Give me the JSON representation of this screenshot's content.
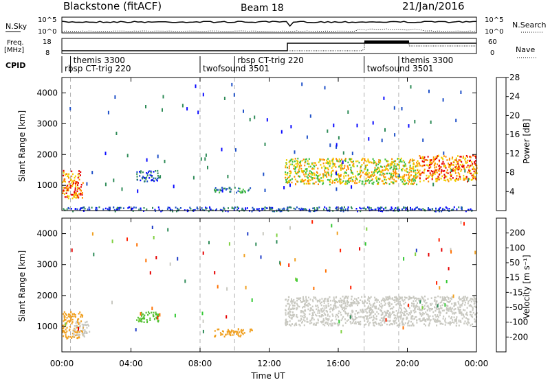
{
  "header": {
    "title": "Blackstone (fitACF)",
    "beam": "Beam 18",
    "date": "21/Jan/2016"
  },
  "panels": {
    "nsky": {
      "label": "N.Sky",
      "tick_top": "10^5",
      "tick_bottom": "10^0"
    },
    "nsearch": {
      "label": "N.Search",
      "tick_top": "10^5",
      "tick_bottom": "10^0"
    },
    "freq": {
      "label": "Freq.",
      "unit": "[MHz]",
      "tick_top": "18",
      "tick_bottom": "8"
    },
    "nave": {
      "label": "Nave",
      "tick_top": "60",
      "tick_bottom": "0"
    },
    "cpid": {
      "label": "CPID",
      "programs": [
        {
          "name": "themis 3300",
          "start_h": 0.5,
          "row": 0
        },
        {
          "name": "rbsp CT-trig 220",
          "start_h": 0.0,
          "row": 1
        },
        {
          "name": "twofsound 3501",
          "start_h": 8.0,
          "row": 1
        },
        {
          "name": "rbsp CT-trig 220",
          "start_h": 10.0,
          "row": 0
        },
        {
          "name": "twofsound 3501",
          "start_h": 17.5,
          "row": 1
        },
        {
          "name": "themis 3300",
          "start_h": 19.5,
          "row": 0
        }
      ]
    }
  },
  "chart_data": [
    {
      "type": "heatmap",
      "name": "power",
      "ylabel": "Slant Range [km]",
      "ylim": [
        180,
        4500
      ],
      "yticks": [
        1000,
        2000,
        3000,
        4000
      ],
      "colorbar": {
        "label": "Power [dB]",
        "ticks": [
          "4",
          "8",
          "12",
          "16",
          "20",
          "24",
          "28"
        ],
        "colors": [
          "#0a0aff",
          "#1e50c8",
          "#2e8b57",
          "#3fbf3f",
          "#f0d000",
          "#ff8c00",
          "#e60000"
        ]
      },
      "echo_regions": [
        {
          "t0": 0.0,
          "t1": 1.2,
          "r0": 600,
          "r1": 1500,
          "level": 5
        },
        {
          "t0": 4.3,
          "t1": 5.6,
          "r0": 1150,
          "r1": 1500,
          "level": 1
        },
        {
          "t0": 8.8,
          "t1": 11.0,
          "r0": 780,
          "r1": 950,
          "level": 2
        },
        {
          "t0": 12.9,
          "t1": 20.5,
          "r0": 1050,
          "r1": 1900,
          "level": 4
        },
        {
          "t0": 20.5,
          "t1": 24.0,
          "r0": 1150,
          "r1": 2000,
          "level": 5
        },
        {
          "t0": 0.0,
          "t1": 24.0,
          "r0": 180,
          "r1": 320,
          "level": 1
        }
      ]
    },
    {
      "type": "heatmap",
      "name": "velocity",
      "ylabel": "Slant Range [km]",
      "ylim": [
        180,
        4500
      ],
      "yticks": [
        1000,
        2000,
        3000,
        4000
      ],
      "xlabel": "Time UT",
      "xticks": [
        "00:00",
        "04:00",
        "08:00",
        "12:00",
        "16:00",
        "20:00",
        "00:00"
      ],
      "colorbar": {
        "label": "Velocity [m s⁻¹]",
        "ticks": [
          "200",
          "100",
          "50",
          "15",
          "-15",
          "-50",
          "-100",
          "-200"
        ],
        "colors": [
          "#1e3cc8",
          "#2e8b57",
          "#32c832",
          "#7fd040",
          "#c8c8c0",
          "#f0a020",
          "#ff7000",
          "#ff2000",
          "#e60000"
        ]
      },
      "echo_regions": [
        {
          "t0": 0.0,
          "t1": 1.2,
          "r0": 600,
          "r1": 1500,
          "level": "orange"
        },
        {
          "t0": 0.6,
          "t1": 1.6,
          "r0": 700,
          "r1": 1200,
          "level": "gray"
        },
        {
          "t0": 4.3,
          "t1": 5.6,
          "r0": 1150,
          "r1": 1500,
          "level": "green"
        },
        {
          "t0": 8.8,
          "t1": 11.0,
          "r0": 700,
          "r1": 950,
          "level": "orange"
        },
        {
          "t0": 12.9,
          "t1": 24.0,
          "r0": 1050,
          "r1": 2000,
          "level": "gray"
        }
      ]
    }
  ],
  "colors": {
    "frame": "#000000",
    "grid_dashed": "#b0b0b0"
  }
}
